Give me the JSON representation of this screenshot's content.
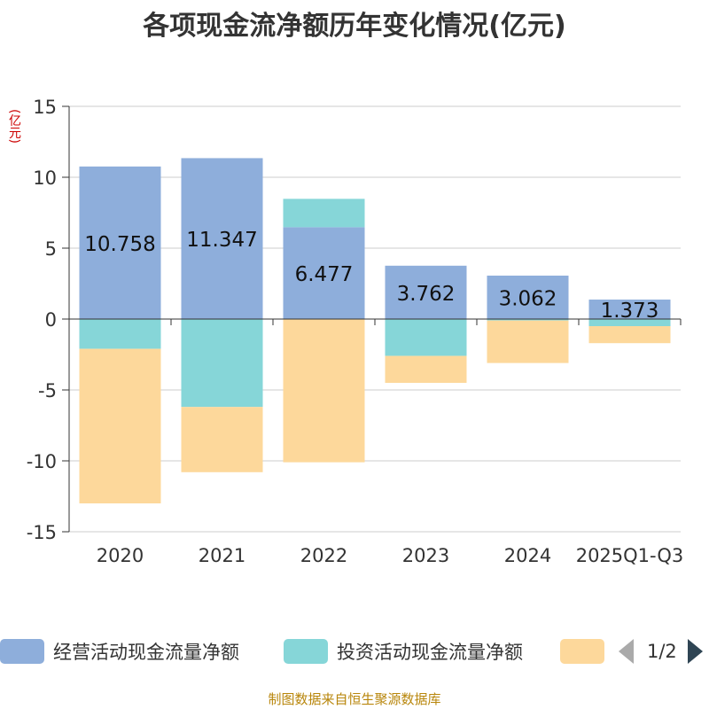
{
  "title": "各项现金流净额历年变化情况(亿元)",
  "unit_label": "(亿元)",
  "source": "制图数据来自恒生聚源数据库",
  "legend": {
    "items": [
      {
        "label": "经营活动现金流量净额",
        "color": "#8eaedb"
      },
      {
        "label": "投资活动现金流量净额",
        "color": "#86d6d8"
      },
      {
        "label": "",
        "color": "#fdd89b"
      }
    ],
    "pager": "1/2"
  },
  "chart_data": {
    "type": "bar",
    "stacked": true,
    "title": "各项现金流净额历年变化情况(亿元)",
    "ylabel": "(亿元)",
    "ylim": [
      -15,
      15
    ],
    "yticks": [
      15,
      10,
      5,
      0,
      -5,
      -10,
      -15
    ],
    "categories": [
      "2020",
      "2021",
      "2022",
      "2023",
      "2024",
      "2025Q1-Q3"
    ],
    "series": [
      {
        "name": "经营活动现金流量净额",
        "color": "#8eaedb",
        "values": [
          10.758,
          11.347,
          6.477,
          3.762,
          3.062,
          1.373
        ],
        "show_labels": true
      },
      {
        "name": "投资活动现金流量净额",
        "color": "#86d6d8",
        "values": [
          -2.1,
          -6.2,
          2.0,
          -2.6,
          -0.1,
          -0.5
        ],
        "show_labels": false
      },
      {
        "name": "",
        "color": "#fdd89b",
        "values": [
          -10.9,
          -4.6,
          -10.1,
          -1.9,
          -3.0,
          -1.2
        ],
        "show_labels": false
      }
    ]
  }
}
